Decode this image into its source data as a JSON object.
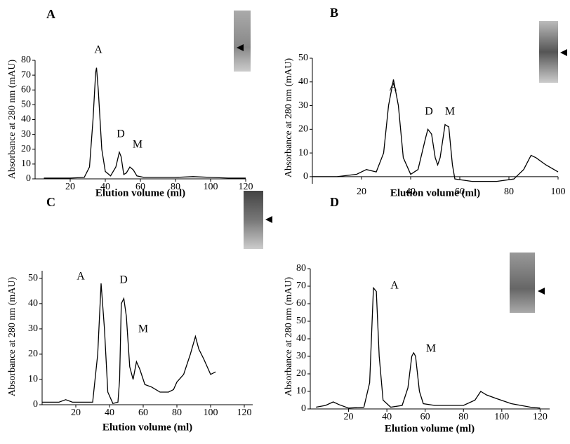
{
  "chart_data": [
    {
      "type": "line",
      "panel": "A",
      "y_label": "Absorbance at 280 nm (mAU)",
      "x_label": "Elution volume (ml)",
      "annotations": [
        "A",
        "D",
        "M"
      ],
      "color": "#000000",
      "x": [
        5,
        20,
        28,
        31,
        33,
        34.5,
        35,
        36,
        38,
        40,
        43,
        46,
        48,
        49,
        50.5,
        52,
        54,
        56,
        58,
        62,
        80,
        90,
        100,
        110,
        120
      ],
      "values": [
        0.5,
        0.5,
        1,
        8,
        40,
        72,
        75,
        60,
        20,
        5,
        2,
        8,
        18,
        15,
        3,
        4,
        8,
        6,
        2,
        1,
        1,
        1.5,
        1,
        0.5,
        0.5
      ],
      "xlim": [
        0,
        120
      ],
      "ylim": [
        0,
        80
      ],
      "xticks": [
        20,
        40,
        60,
        80,
        100,
        120
      ],
      "yticks": [
        0,
        10,
        20,
        30,
        40,
        50,
        60,
        70,
        80
      ]
    },
    {
      "type": "line",
      "panel": "B",
      "y_label": "Absorbance at 280 nm (mAU)",
      "x_label": "Elution volume (ml)",
      "annotations": [
        "A",
        "D",
        "M"
      ],
      "color": "#000000",
      "x": [
        0,
        10,
        18,
        22,
        26,
        29,
        31,
        33,
        35,
        37,
        40,
        43,
        46,
        47,
        48.5,
        50,
        51,
        52,
        54,
        55.5,
        57,
        58,
        65,
        75,
        82,
        86,
        89,
        91,
        95,
        100
      ],
      "values": [
        0,
        0,
        1,
        3,
        2,
        10,
        30,
        41,
        30,
        8,
        1,
        3,
        16,
        20,
        18,
        8,
        5,
        8,
        22,
        21,
        5,
        -1,
        -2,
        -2,
        -1,
        3,
        9,
        8,
        5,
        2
      ],
      "xlim": [
        0,
        100
      ],
      "ylim": [
        -3,
        50
      ],
      "xticks": [
        20,
        40,
        60,
        80,
        100
      ],
      "yticks": [
        0,
        10,
        20,
        30,
        40,
        50
      ]
    },
    {
      "type": "line",
      "panel": "C",
      "y_label": "Absorbance at 280 nm (mAU)",
      "x_label": "Elution volume (ml)",
      "annotations": [
        "A",
        "D",
        "M"
      ],
      "color": "#000000",
      "x": [
        0,
        10,
        14,
        18,
        30,
        33,
        35,
        37,
        39,
        42,
        45,
        46,
        47,
        48.5,
        50,
        52,
        54,
        56,
        58,
        61,
        65,
        70,
        75,
        78,
        80,
        84,
        88,
        91,
        93,
        96,
        100,
        103
      ],
      "values": [
        1,
        1,
        2,
        1,
        1,
        20,
        48,
        30,
        5,
        0.5,
        1,
        10,
        40,
        42,
        35,
        15,
        10,
        17,
        14,
        8,
        7,
        5,
        5,
        6,
        9,
        12,
        20,
        27,
        22,
        18,
        12,
        13
      ],
      "xlim": [
        0,
        125
      ],
      "ylim": [
        0,
        53
      ],
      "xticks": [
        20,
        40,
        60,
        80,
        100,
        120
      ],
      "yticks": [
        0,
        10,
        20,
        30,
        40,
        50
      ]
    },
    {
      "type": "line",
      "panel": "D",
      "y_label": "Absorbance at 280 nm (mAU)",
      "x_label": "Elution volume (ml)",
      "annotations": [
        "A",
        "M"
      ],
      "color": "#000000",
      "x": [
        3,
        8,
        12,
        15,
        20,
        28,
        31,
        33,
        34.5,
        36,
        38,
        42,
        48,
        51,
        53,
        54,
        55,
        57,
        59,
        65,
        80,
        86,
        89,
        92,
        97,
        105,
        115,
        120
      ],
      "values": [
        1,
        2,
        4,
        2.5,
        0.5,
        1,
        15,
        69,
        67,
        30,
        5,
        1,
        2,
        12,
        30,
        32,
        30,
        10,
        3,
        2,
        2,
        5,
        10,
        8,
        6,
        3,
        1,
        0.5
      ],
      "xlim": [
        0,
        125
      ],
      "ylim": [
        0,
        80
      ],
      "xticks": [
        20,
        40,
        60,
        80,
        100,
        120
      ],
      "yticks": [
        0,
        10,
        20,
        30,
        40,
        50,
        60,
        70,
        80
      ]
    }
  ]
}
